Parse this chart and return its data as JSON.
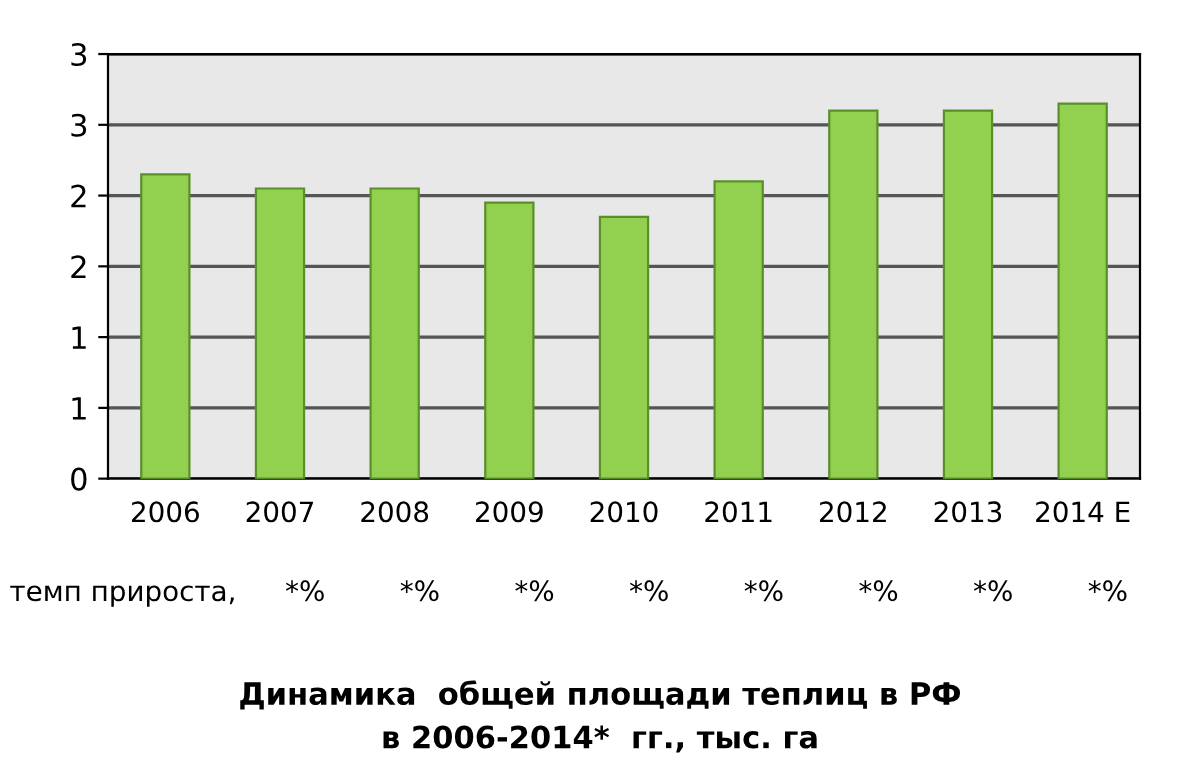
{
  "chart_data": {
    "type": "bar",
    "title": "Динамика  общей площади теплиц в РФ\nв 2006-2014*  гг., тыс. га",
    "categories": [
      "2006",
      "2007",
      "2008",
      "2009",
      "2010",
      "2011",
      "2012",
      "2013",
      "2014 E"
    ],
    "values": [
      2.15,
      2.05,
      2.05,
      1.95,
      1.85,
      2.1,
      2.6,
      2.6,
      2.65
    ],
    "color": "#92d050",
    "ylim": [
      0,
      3
    ],
    "yticks": [
      0,
      {
        "value": 0.5,
        "label": "1"
      },
      {
        "value": 1,
        "label": "1"
      },
      {
        "value": 1.5,
        "label": "2"
      },
      {
        "value": 2,
        "label": "2"
      },
      {
        "value": 2.5,
        "label": "3"
      },
      {
        "value": 3,
        "label": "3"
      }
    ],
    "grid": "y",
    "annotations": [
      "темп прироста,",
      "*%",
      "*%",
      "*%",
      "*%",
      "*%",
      "*%",
      "*%",
      "*%"
    ]
  }
}
